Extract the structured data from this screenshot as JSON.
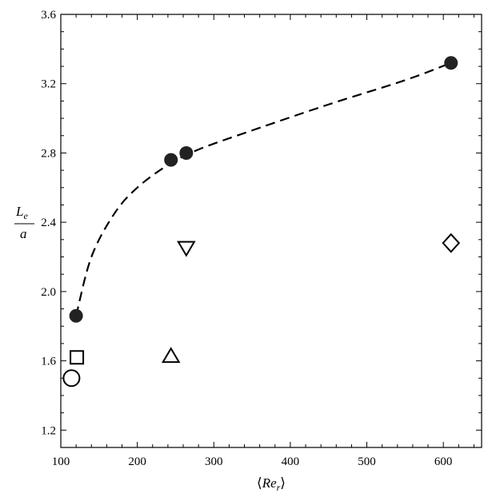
{
  "chart_data": {
    "type": "scatter",
    "xlim": [
      100,
      650
    ],
    "ylim": [
      1.1,
      3.6
    ],
    "grid": false,
    "xlabel": {
      "left_bracket": "⟨",
      "main": "Re",
      "sub": "r",
      "right_bracket": "⟩"
    },
    "ylabel": {
      "numerator": "L",
      "numerator_sub": "e",
      "denominator": "a"
    },
    "x_ticks": [
      100,
      200,
      300,
      400,
      500,
      600
    ],
    "x_tick_labels": [
      "100",
      "200",
      "300",
      "400",
      "500",
      "600"
    ],
    "y_ticks": [
      1.2,
      1.6,
      2.0,
      2.4,
      2.8,
      3.2,
      3.6
    ],
    "y_tick_labels": [
      "1.2",
      "1.6",
      "2.0",
      "2.4",
      "2.8",
      "3.2",
      "3.6"
    ],
    "series": [
      {
        "marker": "filled-circle",
        "points": [
          [
            120,
            1.86
          ],
          [
            244,
            2.76
          ],
          [
            264,
            2.8
          ],
          [
            610,
            3.32
          ]
        ]
      },
      {
        "marker": "open-circle",
        "points": [
          [
            114,
            1.5
          ]
        ]
      },
      {
        "marker": "open-square",
        "points": [
          [
            121,
            1.62
          ]
        ]
      },
      {
        "marker": "open-triangle-up",
        "points": [
          [
            244,
            1.63
          ]
        ]
      },
      {
        "marker": "open-triangle-down",
        "points": [
          [
            264,
            2.25
          ]
        ]
      },
      {
        "marker": "open-diamond",
        "points": [
          [
            610,
            2.28
          ]
        ]
      }
    ],
    "fit_line": {
      "style": "dashed",
      "points": [
        [
          120,
          1.86
        ],
        [
          140,
          2.2
        ],
        [
          170,
          2.45
        ],
        [
          200,
          2.6
        ],
        [
          240,
          2.73
        ],
        [
          280,
          2.82
        ],
        [
          350,
          2.93
        ],
        [
          450,
          3.08
        ],
        [
          550,
          3.22
        ],
        [
          610,
          3.32
        ]
      ]
    }
  }
}
